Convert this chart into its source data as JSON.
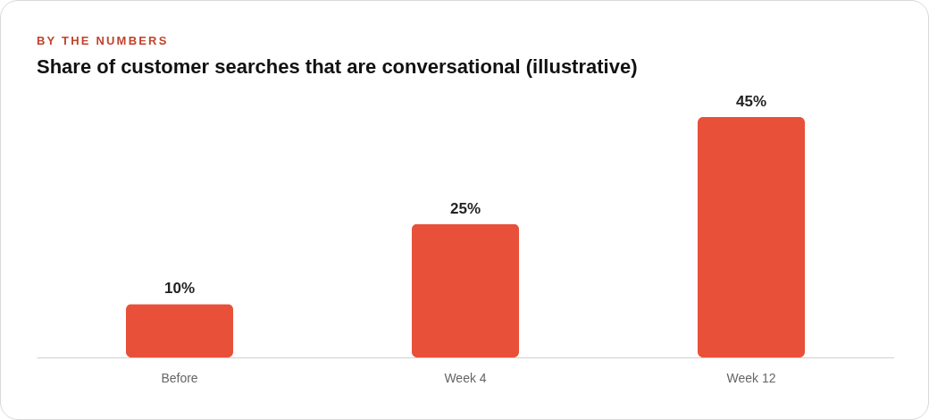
{
  "chart_data": {
    "type": "bar",
    "subtitle": "BY THE NUMBERS",
    "title": "Share of customer searches that are conversational (illustrative)",
    "categories": [
      "Before",
      "Week 4",
      "Week 12"
    ],
    "values": [
      10,
      25,
      45
    ],
    "value_labels": [
      "10%",
      "25%",
      "45%"
    ],
    "color": "#e8503a"
  }
}
